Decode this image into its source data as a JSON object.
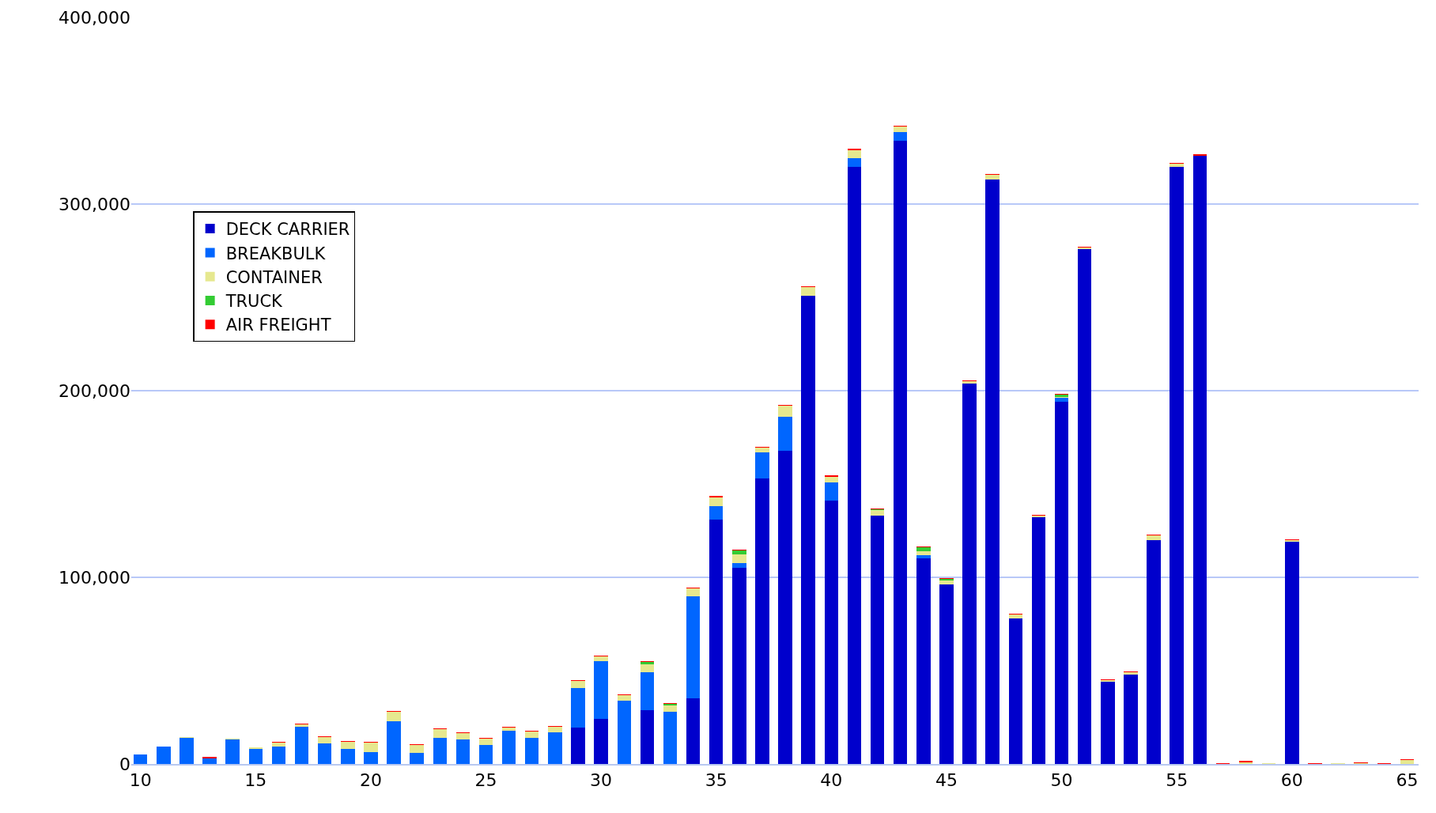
{
  "chart_data": {
    "type": "bar",
    "stacked": true,
    "x": [
      10,
      11,
      12,
      13,
      14,
      15,
      16,
      17,
      18,
      19,
      20,
      21,
      22,
      23,
      24,
      25,
      26,
      27,
      28,
      29,
      30,
      31,
      32,
      33,
      34,
      35,
      36,
      37,
      38,
      39,
      40,
      41,
      42,
      43,
      44,
      45,
      46,
      47,
      48,
      49,
      50,
      51,
      52,
      53,
      54,
      55,
      56,
      57,
      58,
      59,
      60,
      61,
      62,
      63,
      64,
      65
    ],
    "series": [
      {
        "name": "DECK CARRIER",
        "color": "#0000cc",
        "values": [
          null,
          null,
          null,
          null,
          null,
          null,
          null,
          null,
          null,
          null,
          null,
          null,
          null,
          null,
          null,
          null,
          null,
          null,
          null,
          19500,
          24000,
          null,
          29000,
          null,
          35000,
          131000,
          105000,
          153000,
          168000,
          251000,
          141000,
          320000,
          133000,
          334000,
          110000,
          96000,
          204000,
          313000,
          78000,
          132000,
          194000,
          276000,
          44000,
          48000,
          120000,
          320000,
          326000,
          null,
          null,
          null,
          119000,
          null,
          null,
          null,
          null,
          null
        ]
      },
      {
        "name": "BREAKBULK",
        "color": "#0066ff",
        "values": [
          5000,
          9500,
          14000,
          3000,
          13000,
          8000,
          9500,
          20000,
          11000,
          8000,
          6500,
          23000,
          6000,
          14000,
          13000,
          10000,
          18000,
          14000,
          17000,
          21000,
          31000,
          34000,
          20000,
          28000,
          55000,
          7000,
          2500,
          14000,
          18000,
          null,
          10000,
          4500,
          null,
          4500,
          2000,
          null,
          null,
          null,
          null,
          null,
          2000,
          null,
          null,
          null,
          null,
          null,
          null,
          null,
          null,
          null,
          null,
          null,
          null,
          null,
          null,
          null
        ]
      },
      {
        "name": "CONTAINER",
        "color": "#e6e88f",
        "values": [
          null,
          null,
          500,
          null,
          500,
          1000,
          2000,
          1000,
          3500,
          4000,
          5000,
          5000,
          4000,
          4500,
          3500,
          3500,
          1500,
          3500,
          3000,
          4000,
          2500,
          3000,
          4500,
          3500,
          4000,
          5000,
          5000,
          2500,
          6000,
          4500,
          3000,
          4500,
          3000,
          3000,
          2000,
          2500,
          1000,
          2500,
          2000,
          1000,
          500,
          500,
          1000,
          1000,
          2500,
          1500,
          null,
          null,
          1000,
          300,
          1000,
          null,
          300,
          500,
          null,
          2000
        ]
      },
      {
        "name": "TRUCK",
        "color": "#33cc33",
        "values": [
          null,
          null,
          null,
          null,
          null,
          null,
          null,
          null,
          null,
          null,
          null,
          null,
          null,
          null,
          null,
          null,
          null,
          null,
          null,
          null,
          null,
          null,
          1000,
          800,
          null,
          null,
          2000,
          null,
          null,
          null,
          null,
          null,
          500,
          null,
          2000,
          500,
          null,
          null,
          null,
          null,
          1500,
          null,
          null,
          null,
          null,
          null,
          null,
          null,
          null,
          null,
          null,
          null,
          null,
          null,
          null,
          null
        ]
      },
      {
        "name": "AIR FREIGHT",
        "color": "#ff0000",
        "values": [
          null,
          null,
          null,
          1000,
          null,
          null,
          500,
          500,
          500,
          500,
          500,
          500,
          500,
          500,
          500,
          500,
          500,
          500,
          500,
          500,
          500,
          500,
          500,
          500,
          500,
          500,
          500,
          500,
          500,
          500,
          500,
          500,
          500,
          500,
          500,
          500,
          500,
          500,
          500,
          500,
          500,
          500,
          500,
          500,
          500,
          500,
          500,
          500,
          500,
          null,
          500,
          500,
          null,
          500,
          500,
          500
        ]
      }
    ],
    "xlim": [
      9.6,
      65.5
    ],
    "xticks": [
      10,
      15,
      20,
      25,
      30,
      35,
      40,
      45,
      50,
      55,
      60,
      65
    ],
    "ylim": [
      0,
      400000
    ],
    "yticks": [
      {
        "value": 0,
        "label": "0"
      },
      {
        "value": 100000,
        "label": "100,000"
      },
      {
        "value": 200000,
        "label": "200,000"
      },
      {
        "value": 300000,
        "label": "300,000"
      },
      {
        "value": 400000,
        "label": "400,000"
      }
    ],
    "grid": "y",
    "legend": "left"
  }
}
